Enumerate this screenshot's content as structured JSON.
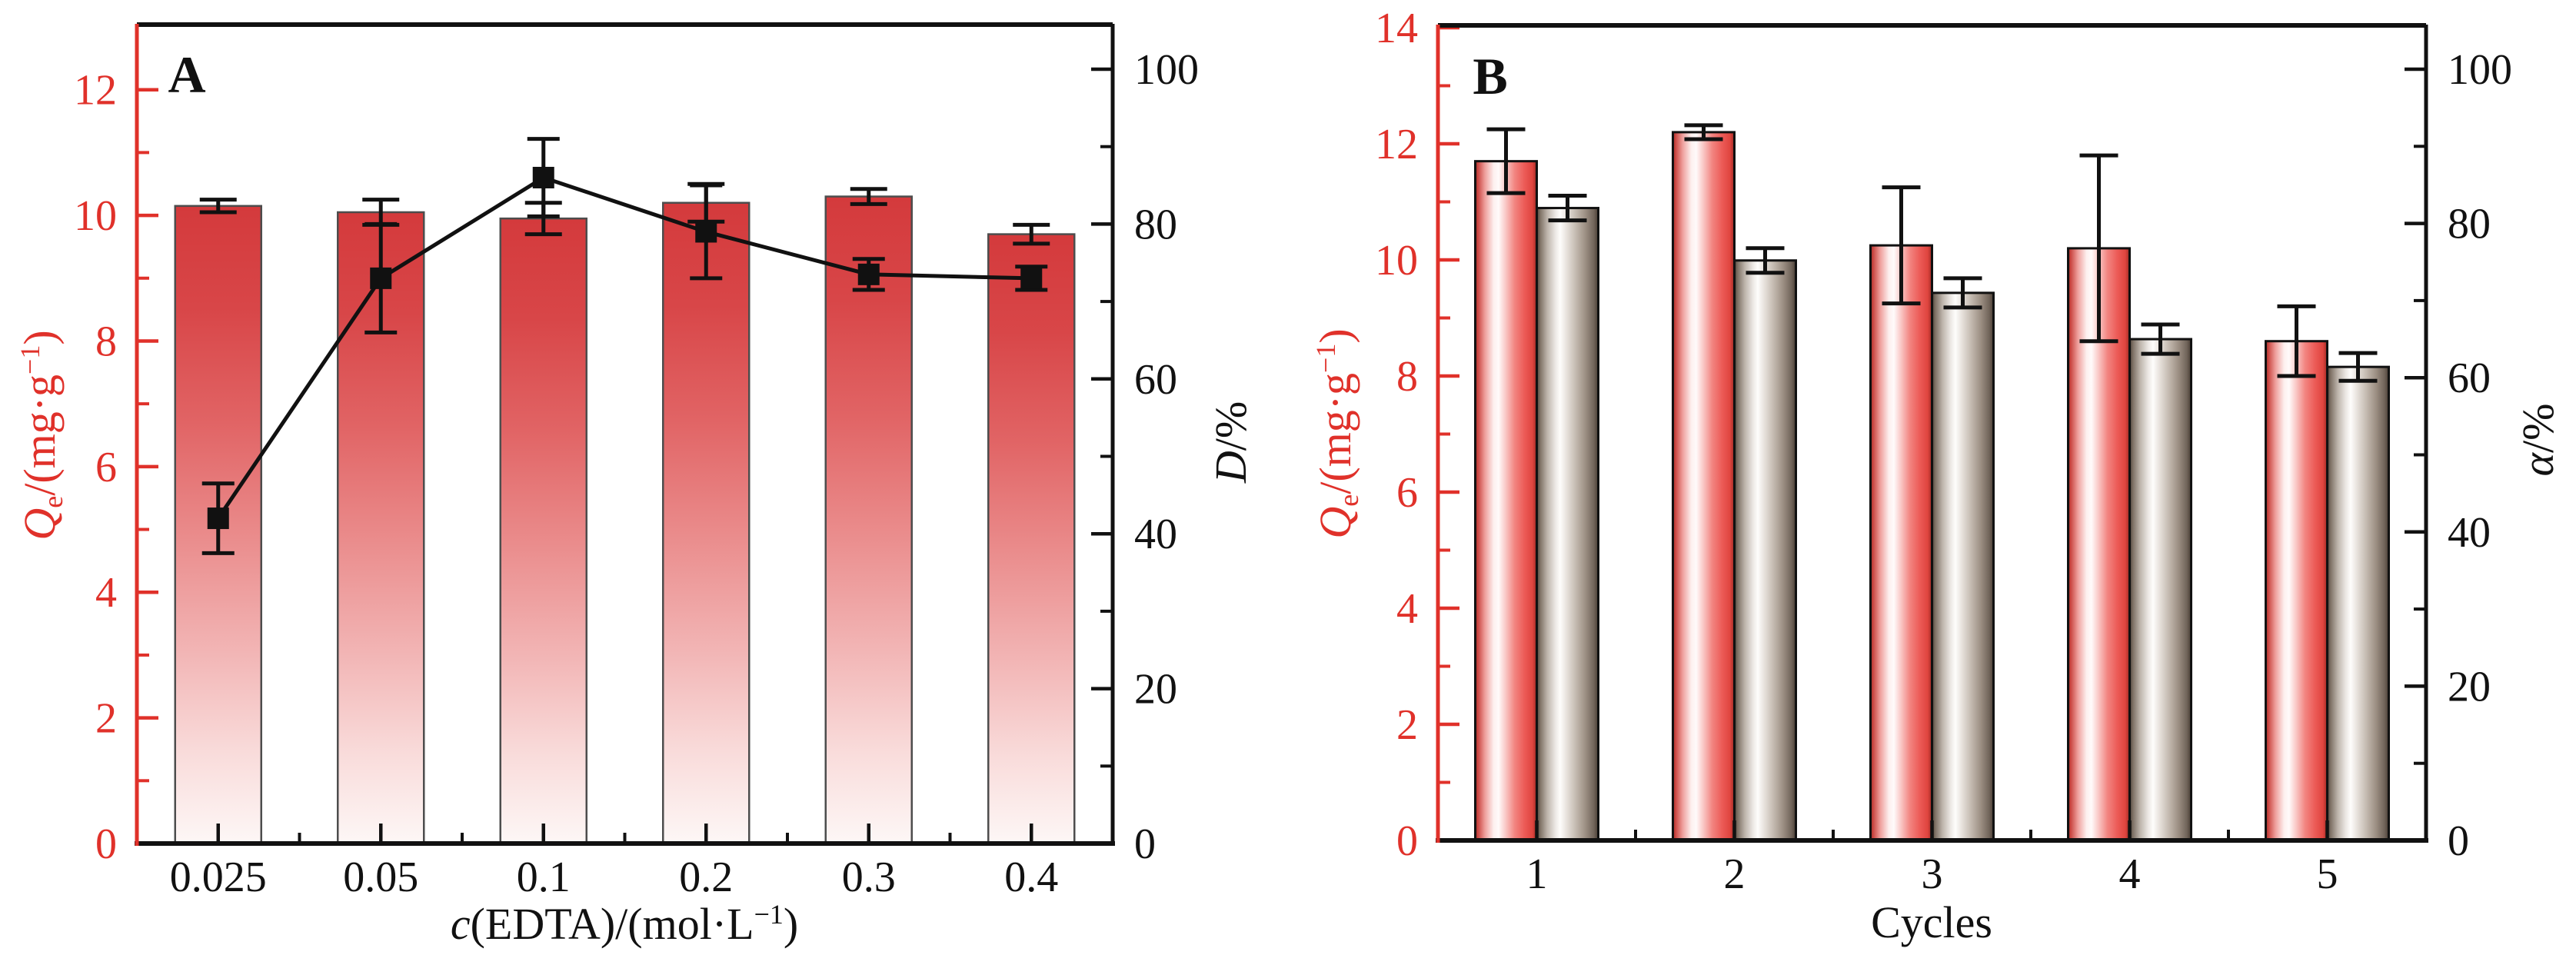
{
  "figure": {
    "panel_a_label": "A",
    "panel_b_label": "B"
  },
  "colors": {
    "axis_red": "#e0312a",
    "frame_black": "#111111",
    "error_black": "#111111",
    "barA_border": "#4d4d4d",
    "barB_border": "#111111",
    "barA_gradient": [
      [
        "0",
        "#d43a3c"
      ],
      [
        "0.16",
        "#d84648"
      ],
      [
        "0.34",
        "#e16465"
      ],
      [
        "0.52",
        "#ea8c8c"
      ],
      [
        "0.70",
        "#f2b5b5"
      ],
      [
        "0.86",
        "#f9dcdb"
      ],
      [
        "1",
        "#fdf7f6"
      ]
    ],
    "barB_red_gradient": [
      [
        "0",
        "#9c2a24"
      ],
      [
        "0.04",
        "#c94540"
      ],
      [
        "0.16",
        "#efa09d"
      ],
      [
        "0.30",
        "#fdf0ef"
      ],
      [
        "0.38",
        "#fffafa"
      ],
      [
        "0.50",
        "#f9c5c3"
      ],
      [
        "0.64",
        "#f28581"
      ],
      [
        "0.80",
        "#ec5b57"
      ],
      [
        "0.93",
        "#df453f"
      ],
      [
        "1",
        "#9c2a24"
      ]
    ],
    "barB_gray_gradient": [
      [
        "0",
        "#483d34"
      ],
      [
        "0.05",
        "#7c6f63"
      ],
      [
        "0.17",
        "#bdb4ab"
      ],
      [
        "0.30",
        "#ebe7e3"
      ],
      [
        "0.38",
        "#fefdfc"
      ],
      [
        "0.50",
        "#e4ded8"
      ],
      [
        "0.64",
        "#c3b9af"
      ],
      [
        "0.80",
        "#9a8d81"
      ],
      [
        "0.93",
        "#71645a"
      ],
      [
        "1",
        "#483d34"
      ]
    ]
  },
  "chart_data": [
    {
      "panel": "A",
      "type": "bar",
      "overlay": "line",
      "categories": [
        "0.025",
        "0.05",
        "0.1",
        "0.2",
        "0.3",
        "0.4"
      ],
      "xlabel": "c(EDTA)/(mol·L−1)",
      "xlabel_parts": [
        {
          "t": "c",
          "i": true
        },
        {
          "t": "(EDTA)/(mol·L"
        },
        {
          "t": "−1",
          "sup": true
        },
        {
          "t": ")"
        }
      ],
      "left_axis": {
        "label": "Qe/(mg·g−1)",
        "label_parts": [
          {
            "t": "Q",
            "i": true
          },
          {
            "t": "e",
            "sub": true
          },
          {
            "t": "/(mg·g"
          },
          {
            "t": "−1",
            "sup": true
          },
          {
            "t": ")"
          }
        ],
        "tick_labels": [
          "0",
          "2",
          "4",
          "6",
          "8",
          "10",
          "12"
        ],
        "tick_values": [
          0,
          2,
          4,
          6,
          8,
          10,
          12
        ],
        "minor_values": [
          1,
          3,
          5,
          7,
          9,
          11
        ],
        "min": 0,
        "max": 13,
        "color": "#e0312a"
      },
      "right_axis": {
        "label": "D/%",
        "label_parts": [
          {
            "t": "D",
            "i": true
          },
          {
            "t": "/%"
          }
        ],
        "tick_labels": [
          "0",
          "20",
          "40",
          "60",
          "80",
          "100"
        ],
        "tick_values": [
          0,
          20,
          40,
          60,
          80,
          100
        ],
        "minor_values": [
          10,
          30,
          50,
          70,
          90
        ],
        "min": 0,
        "max": 105,
        "color": "#111111"
      },
      "bars": {
        "name": "Qe",
        "values": [
          10.15,
          10.05,
          9.95,
          10.2,
          10.3,
          9.7
        ],
        "errors": [
          0.1,
          0.2,
          0.25,
          0.3,
          0.12,
          0.15
        ]
      },
      "line": {
        "name": "D",
        "marker": "square",
        "values": [
          42,
          73,
          86,
          79,
          73.5,
          73
        ],
        "errors": [
          4.5,
          7,
          5,
          6,
          2,
          1.5
        ]
      },
      "grid": false,
      "legend": "none"
    },
    {
      "panel": "B",
      "type": "grouped-bar",
      "categories": [
        "1",
        "2",
        "3",
        "4",
        "5"
      ],
      "xlabel": "Cycles",
      "xlabel_parts": [
        {
          "t": "Cycles"
        }
      ],
      "left_axis": {
        "label": "Qe/(mg·g−1)",
        "label_parts": [
          {
            "t": "Q",
            "i": true
          },
          {
            "t": "e",
            "sub": true
          },
          {
            "t": "/(mg·g"
          },
          {
            "t": "−1",
            "sup": true
          },
          {
            "t": ")"
          }
        ],
        "tick_labels": [
          "0",
          "2",
          "4",
          "6",
          "8",
          "10",
          "12",
          "14"
        ],
        "tick_values": [
          0,
          2,
          4,
          6,
          8,
          10,
          12,
          14
        ],
        "minor_values": [
          1,
          3,
          5,
          7,
          9,
          11,
          13
        ],
        "min": 0,
        "max": 14,
        "color": "#e0312a"
      },
      "right_axis": {
        "label": "α/%",
        "label_parts": [
          {
            "t": "α",
            "i": true
          },
          {
            "t": "/%"
          }
        ],
        "tick_labels": [
          "0",
          "20",
          "40",
          "60",
          "80",
          "100"
        ],
        "tick_values": [
          0,
          20,
          40,
          60,
          80,
          100
        ],
        "minor_values": [
          10,
          30,
          50,
          70,
          90
        ],
        "min": 0,
        "max": 105,
        "color": "#111111"
      },
      "series": [
        {
          "name": "Qe (red bars, left axis)",
          "axis": "left",
          "values": [
            11.7,
            12.2,
            10.25,
            10.2,
            8.6
          ],
          "errors": [
            0.55,
            0.12,
            1.0,
            1.6,
            0.6
          ]
        },
        {
          "name": "α (gray bars, right axis)",
          "axis": "right",
          "values": [
            82,
            75.2,
            71,
            65,
            61.4
          ],
          "errors": [
            1.6,
            1.6,
            1.9,
            1.9,
            1.8
          ]
        }
      ],
      "grid": false,
      "legend": "none"
    }
  ]
}
